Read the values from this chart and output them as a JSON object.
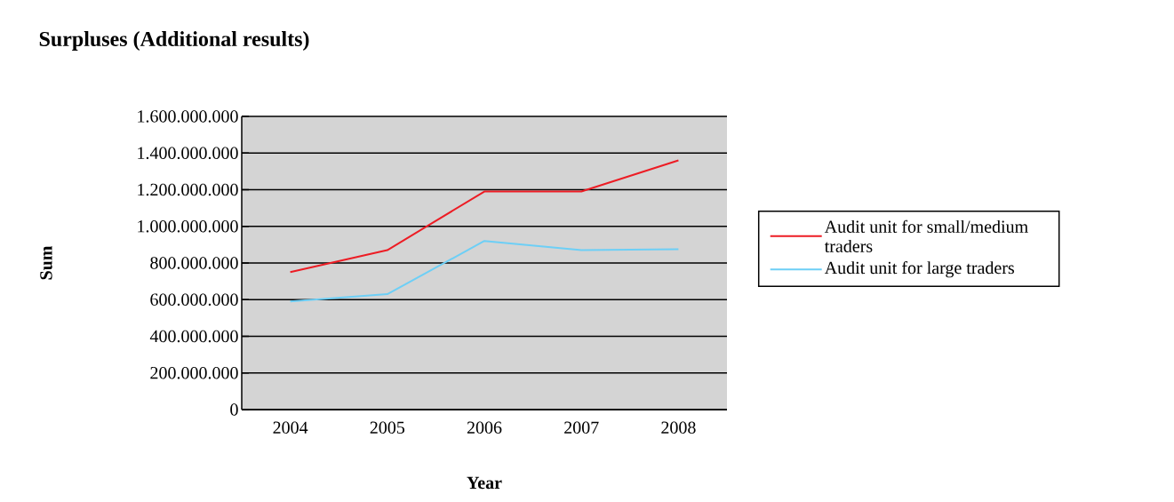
{
  "chart_data": {
    "type": "line",
    "title": "Surpluses (Additional results)",
    "xlabel": "Year",
    "ylabel": "Sum",
    "categories": [
      "2004",
      "2005",
      "2006",
      "2007",
      "2008"
    ],
    "series": [
      {
        "name": "Audit unit for small/medium traders",
        "color": "#ed1c24",
        "values": [
          750000000,
          870000000,
          1190000000,
          1190000000,
          1360000000
        ]
      },
      {
        "name": "Audit unit for large traders",
        "color": "#6dcff6",
        "values": [
          590000000,
          630000000,
          920000000,
          870000000,
          875000000
        ]
      }
    ],
    "ylim": [
      0,
      1600000000
    ],
    "yticks": [
      0,
      {
        "value": 200000000,
        "label": "200.000.000"
      },
      {
        "value": 400000000,
        "label": "400.000.000"
      },
      {
        "value": 600000000,
        "label": "600.000.000"
      },
      {
        "value": 800000000,
        "label": "800.000.000"
      },
      {
        "value": 1000000000,
        "label": "1.000.000.000"
      },
      {
        "value": 1200000000,
        "label": "1.200.000.000"
      },
      {
        "value": 1400000000,
        "label": "1.400.000.000"
      },
      {
        "value": 1600000000,
        "label": "1.600.000.000"
      }
    ],
    "grid": "y",
    "legend": "right",
    "marker": "none",
    "line_style": "solid"
  }
}
